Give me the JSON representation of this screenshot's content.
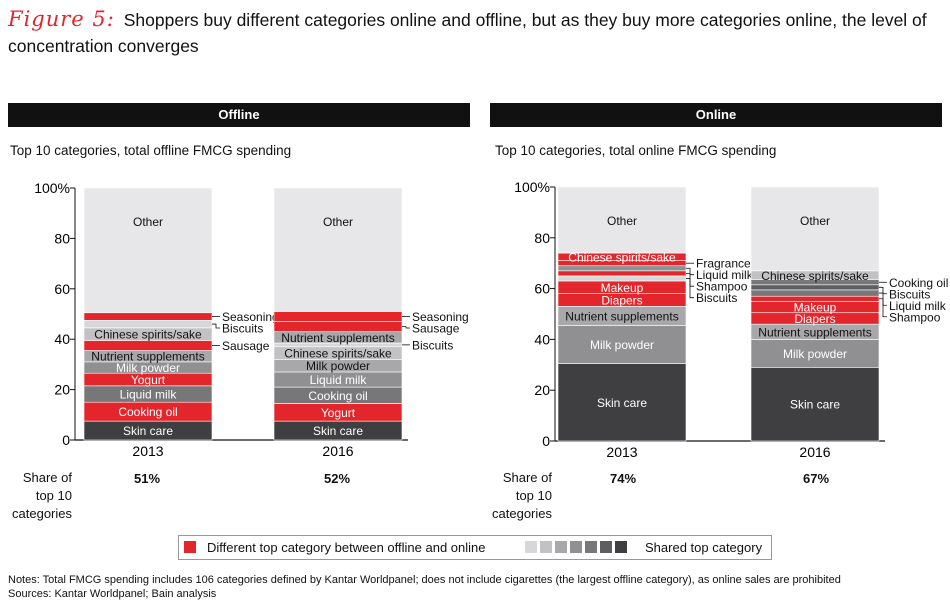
{
  "figure_label": "Figure 5:",
  "title": "Shoppers buy different categories online and offline, but as they buy more categories online, the level of concentration converges",
  "colors": {
    "red": "#e3262b",
    "other": "#e7e7e9",
    "shared": [
      "#d7d7d9",
      "#c2c2c4",
      "#a8a8aa",
      "#909092",
      "#777779",
      "#5e5e60",
      "#3f3f41"
    ]
  },
  "legend": {
    "different": "Different top category between offline and online",
    "shared": "Shared top category"
  },
  "notes": "Notes: Total FMCG spending includes 106 categories defined by Kantar Worldpanel; does not include cigarettes (the largest offline category), as online sales are prohibited",
  "sources": "Sources: Kantar Worldpanel; Bain analysis",
  "share_label": [
    "Share of",
    "top 10",
    "categories"
  ],
  "chart_data": [
    {
      "type": "bar",
      "stacked": true,
      "panel_title": "Offline",
      "subtitle": "Top 10 categories, total offline FMCG spending",
      "categories": [
        "2013",
        "2016"
      ],
      "yticks": [
        "0",
        "20",
        "40",
        "60",
        "80",
        "100%"
      ],
      "ylim": [
        0,
        100
      ],
      "share_values": [
        "51%",
        "52%"
      ],
      "bars": [
        {
          "year": "2013",
          "segments": [
            {
              "label": "Skin care",
              "value": 7.5,
              "color": "shared",
              "shade": 6,
              "label_pos": "inside"
            },
            {
              "label": "Cooking oil",
              "value": 7.5,
              "color": "red",
              "label_pos": "inside"
            },
            {
              "label": "Liquid milk",
              "value": 6.5,
              "color": "shared",
              "shade": 4,
              "label_pos": "inside"
            },
            {
              "label": "Yogurt",
              "value": 5,
              "color": "red",
              "label_pos": "inside"
            },
            {
              "label": "Milk powder",
              "value": 4.5,
              "color": "shared",
              "shade": 3,
              "label_pos": "inside"
            },
            {
              "label": "Nutrient supplements",
              "value": 4.5,
              "color": "shared",
              "shade": 2,
              "label_pos": "inside"
            },
            {
              "label": "Sausage",
              "value": 4,
              "color": "red",
              "label_pos": "outside"
            },
            {
              "label": "Chinese spirits/sake",
              "value": 5,
              "color": "shared",
              "shade": 1,
              "label_pos": "inside"
            },
            {
              "label": "Biscuits",
              "value": 3,
              "color": "shared",
              "shade": 0,
              "label_pos": "outside"
            },
            {
              "label": "Seasoning",
              "value": 3,
              "color": "red",
              "label_pos": "outside"
            },
            {
              "label": "Other",
              "value": 49.5,
              "color": "other",
              "label_pos": "inside"
            }
          ]
        },
        {
          "year": "2016",
          "segments": [
            {
              "label": "Skin care",
              "value": 7.5,
              "color": "shared",
              "shade": 6,
              "label_pos": "inside"
            },
            {
              "label": "Yogurt",
              "value": 7,
              "color": "red",
              "label_pos": "inside"
            },
            {
              "label": "Cooking oil",
              "value": 6.5,
              "color": "shared",
              "shade": 4,
              "label_pos": "inside"
            },
            {
              "label": "Liquid milk",
              "value": 6,
              "color": "shared",
              "shade": 3,
              "label_pos": "inside"
            },
            {
              "label": "Milk powder",
              "value": 5,
              "color": "shared",
              "shade": 2,
              "label_pos": "inside"
            },
            {
              "label": "Chinese spirits/sake",
              "value": 5,
              "color": "shared",
              "shade": 1,
              "label_pos": "inside"
            },
            {
              "label": "Biscuits",
              "value": 1.5,
              "color": "shared",
              "shade": 0,
              "label_pos": "outside"
            },
            {
              "label": "Nutrient supplements",
              "value": 4.5,
              "color": "shared",
              "shade": 2,
              "label_pos": "inside"
            },
            {
              "label": "Sausage",
              "value": 4,
              "color": "red",
              "label_pos": "outside"
            },
            {
              "label": "Seasoning",
              "value": 4,
              "color": "red",
              "label_pos": "outside"
            },
            {
              "label": "Other",
              "value": 49,
              "color": "other",
              "label_pos": "inside"
            }
          ]
        }
      ]
    },
    {
      "type": "bar",
      "stacked": true,
      "panel_title": "Online",
      "subtitle": "Top 10 categories, total online FMCG spending",
      "categories": [
        "2013",
        "2016"
      ],
      "yticks": [
        "0",
        "20",
        "40",
        "60",
        "80",
        "100%"
      ],
      "ylim": [
        0,
        100
      ],
      "share_values": [
        "74%",
        "67%"
      ],
      "bars": [
        {
          "year": "2013",
          "segments": [
            {
              "label": "Skin care",
              "value": 30.5,
              "color": "shared",
              "shade": 6,
              "label_pos": "inside"
            },
            {
              "label": "Milk powder",
              "value": 15,
              "color": "shared",
              "shade": 3,
              "label_pos": "inside"
            },
            {
              "label": "Nutrient supplements",
              "value": 7.5,
              "color": "shared",
              "shade": 2,
              "label_pos": "inside"
            },
            {
              "label": "Diapers",
              "value": 5,
              "color": "red",
              "label_pos": "inside"
            },
            {
              "label": "Makeup",
              "value": 5,
              "color": "red",
              "label_pos": "inside"
            },
            {
              "label": "Biscuits",
              "value": 2,
              "color": "shared",
              "shade": 0,
              "label_pos": "outside"
            },
            {
              "label": "Shampoo",
              "value": 2,
              "color": "red",
              "label_pos": "outside"
            },
            {
              "label": "Liquid milk",
              "value": 2,
              "color": "shared",
              "shade": 3,
              "label_pos": "outside"
            },
            {
              "label": "Fragrance",
              "value": 2,
              "color": "red",
              "label_pos": "outside"
            },
            {
              "label": "Chinese spirits/sake",
              "value": 3,
              "color": "red",
              "label_pos": "inside"
            },
            {
              "label": "Other",
              "value": 26,
              "color": "other",
              "label_pos": "inside"
            }
          ]
        },
        {
          "year": "2016",
          "segments": [
            {
              "label": "Skin care",
              "value": 29,
              "color": "shared",
              "shade": 6,
              "label_pos": "inside"
            },
            {
              "label": "Milk powder",
              "value": 11,
              "color": "shared",
              "shade": 3,
              "label_pos": "inside"
            },
            {
              "label": "Nutrient supplements",
              "value": 6,
              "color": "shared",
              "shade": 2,
              "label_pos": "inside"
            },
            {
              "label": "Diapers",
              "value": 4.5,
              "color": "red",
              "label_pos": "inside"
            },
            {
              "label": "Makeup",
              "value": 4.5,
              "color": "red",
              "label_pos": "inside"
            },
            {
              "label": "Shampoo",
              "value": 2,
              "color": "red",
              "label_pos": "outside"
            },
            {
              "label": "Liquid milk",
              "value": 2.5,
              "color": "shared",
              "shade": 4,
              "label_pos": "outside"
            },
            {
              "label": "Biscuits",
              "value": 2,
              "color": "shared",
              "shade": 5,
              "label_pos": "outside"
            },
            {
              "label": "Cooking oil",
              "value": 2,
              "color": "shared",
              "shade": 4,
              "label_pos": "outside"
            },
            {
              "label": "Chinese spirits/sake",
              "value": 3.5,
              "color": "shared",
              "shade": 1,
              "label_pos": "inside"
            },
            {
              "label": "Other",
              "value": 33,
              "color": "other",
              "label_pos": "inside"
            }
          ]
        }
      ]
    }
  ]
}
